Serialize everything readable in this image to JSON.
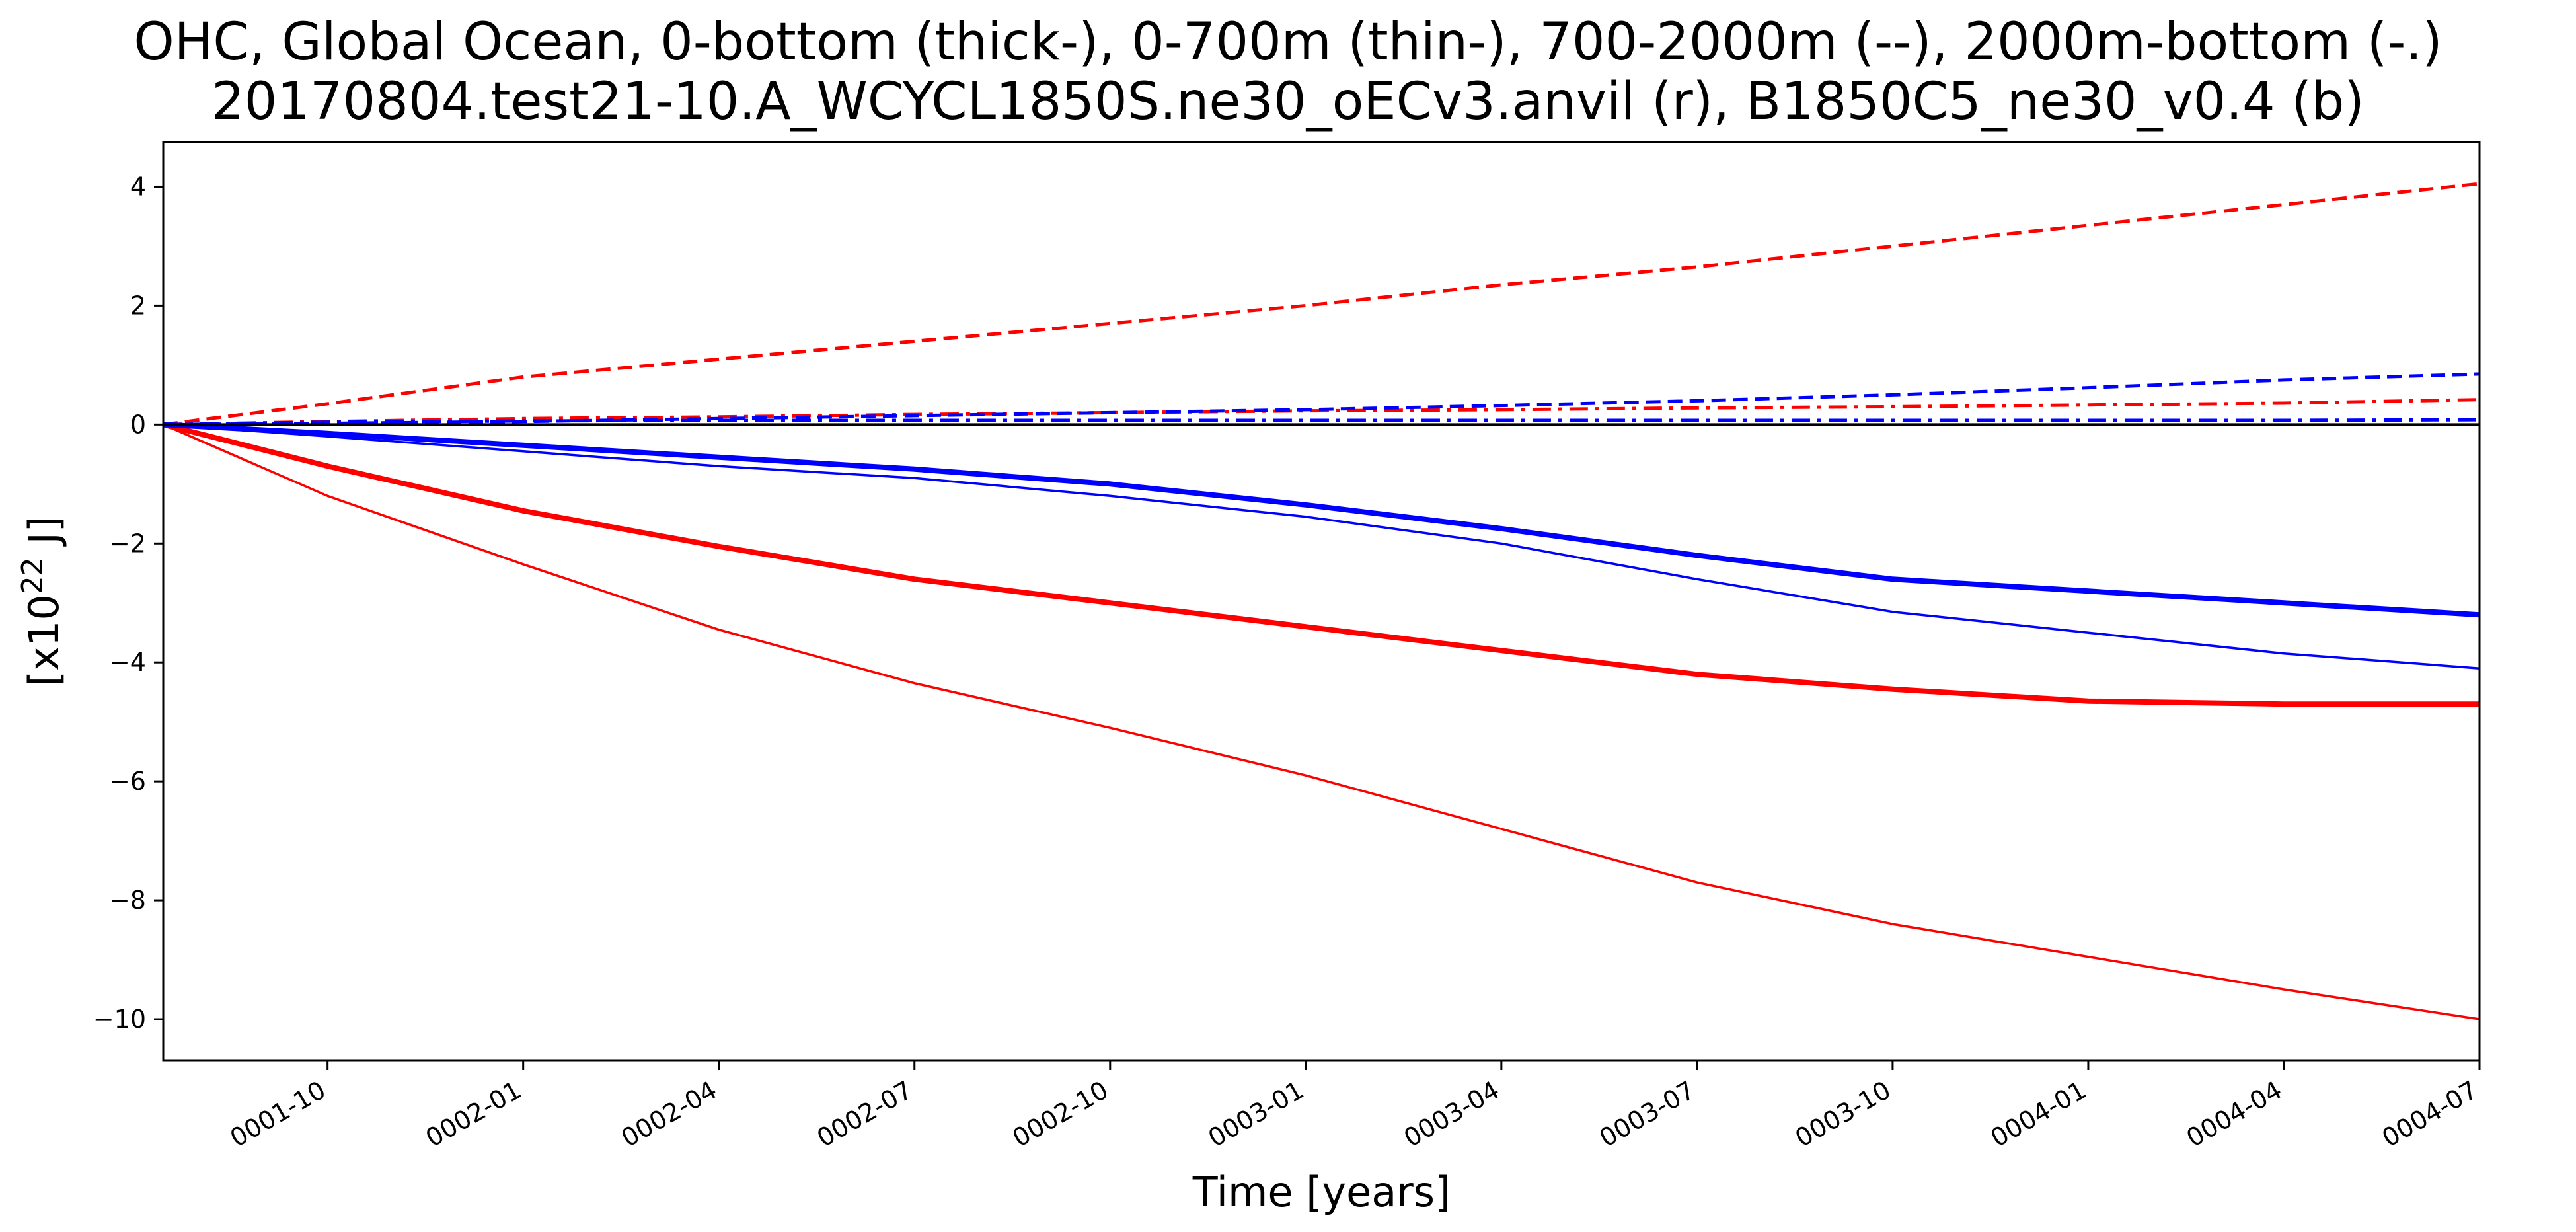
{
  "chart_data": {
    "type": "line",
    "title_lines": [
      "OHC, Global Ocean, 0-bottom (thick-), 0-700m (thin-), 700-2000m (--), 2000m-bottom (-.)",
      "20170804.test21-10.A_WCYCL1850S.ne30_oECv3.anvil (r), B1850C5_ne30_v0.4 (b)"
    ],
    "xlabel": "Time [years]",
    "ylabel": {
      "prefix": "[x10",
      "sup": "22",
      "suffix": " J]"
    },
    "x_tick_labels": [
      "0001-10",
      "0002-01",
      "0002-04",
      "0002-07",
      "0002-10",
      "0003-01",
      "0003-04",
      "0003-07",
      "0003-10",
      "0004-01",
      "0004-04",
      "0004-07"
    ],
    "x_tick_values": [
      0.75,
      1.0,
      1.25,
      1.5,
      1.75,
      2.0,
      2.25,
      2.5,
      2.75,
      3.0,
      3.25,
      3.5
    ],
    "xlim": [
      0.54,
      3.5
    ],
    "y_ticks": [
      4,
      2,
      0,
      -2,
      -4,
      -6,
      -8,
      -10
    ],
    "y_tick_labels": [
      "4",
      "2",
      "0",
      "−2",
      "−4",
      "−6",
      "−8",
      "−10"
    ],
    "ylim": [
      -10.7,
      4.75
    ],
    "grid": false,
    "zero_line": true,
    "series": [
      {
        "color": "#ff0000",
        "style": "thick",
        "x": [
          0.54,
          0.75,
          1.0,
          1.25,
          1.5,
          1.75,
          2.0,
          2.25,
          2.5,
          2.75,
          3.0,
          3.25,
          3.5
        ],
        "y": [
          0,
          -0.7,
          -1.45,
          -2.05,
          -2.6,
          -3.0,
          -3.4,
          -3.8,
          -4.2,
          -4.45,
          -4.65,
          -4.7,
          -4.7
        ]
      },
      {
        "color": "#ff0000",
        "style": "thin",
        "x": [
          0.54,
          0.75,
          1.0,
          1.25,
          1.5,
          1.75,
          2.0,
          2.25,
          2.5,
          2.75,
          3.0,
          3.25,
          3.5
        ],
        "y": [
          0,
          -1.2,
          -2.35,
          -3.45,
          -4.35,
          -5.1,
          -5.9,
          -6.8,
          -7.7,
          -8.4,
          -8.95,
          -9.5,
          -10.0
        ]
      },
      {
        "color": "#ff0000",
        "style": "dashed",
        "x": [
          0.54,
          0.75,
          1.0,
          1.25,
          1.5,
          1.75,
          2.0,
          2.25,
          2.5,
          2.75,
          3.0,
          3.25,
          3.5
        ],
        "y": [
          0,
          0.35,
          0.8,
          1.1,
          1.4,
          1.7,
          2.0,
          2.35,
          2.65,
          3.0,
          3.35,
          3.7,
          4.05
        ]
      },
      {
        "color": "#ff0000",
        "style": "dashdot",
        "x": [
          0.54,
          0.75,
          1.0,
          1.25,
          1.5,
          1.75,
          2.0,
          2.25,
          2.5,
          2.75,
          3.0,
          3.25,
          3.5
        ],
        "y": [
          0,
          0.05,
          0.1,
          0.13,
          0.17,
          0.2,
          0.23,
          0.25,
          0.28,
          0.3,
          0.33,
          0.36,
          0.42
        ]
      },
      {
        "color": "#0000ff",
        "style": "thick",
        "x": [
          0.54,
          0.75,
          1.0,
          1.25,
          1.5,
          1.75,
          2.0,
          2.25,
          2.5,
          2.75,
          3.0,
          3.25,
          3.5
        ],
        "y": [
          0,
          -0.15,
          -0.35,
          -0.55,
          -0.75,
          -1.0,
          -1.35,
          -1.75,
          -2.2,
          -2.6,
          -2.8,
          -3.0,
          -3.2
        ]
      },
      {
        "color": "#0000ff",
        "style": "thin",
        "x": [
          0.54,
          0.75,
          1.0,
          1.25,
          1.5,
          1.75,
          2.0,
          2.25,
          2.5,
          2.75,
          3.0,
          3.25,
          3.5
        ],
        "y": [
          0,
          -0.2,
          -0.45,
          -0.7,
          -0.9,
          -1.2,
          -1.55,
          -2.0,
          -2.6,
          -3.15,
          -3.5,
          -3.85,
          -4.1
        ]
      },
      {
        "color": "#0000ff",
        "style": "dashed",
        "x": [
          0.54,
          0.75,
          1.0,
          1.25,
          1.5,
          1.75,
          2.0,
          2.25,
          2.5,
          2.75,
          3.0,
          3.25,
          3.5
        ],
        "y": [
          0,
          0.02,
          0.05,
          0.1,
          0.15,
          0.2,
          0.25,
          0.32,
          0.4,
          0.5,
          0.62,
          0.75,
          0.85
        ]
      },
      {
        "color": "#0000ff",
        "style": "dashdot",
        "x": [
          0.54,
          0.75,
          1.0,
          1.25,
          1.5,
          1.75,
          2.0,
          2.25,
          2.5,
          2.75,
          3.0,
          3.25,
          3.5
        ],
        "y": [
          0,
          0.04,
          0.06,
          0.07,
          0.07,
          0.07,
          0.07,
          0.07,
          0.07,
          0.07,
          0.07,
          0.07,
          0.08
        ]
      }
    ]
  }
}
